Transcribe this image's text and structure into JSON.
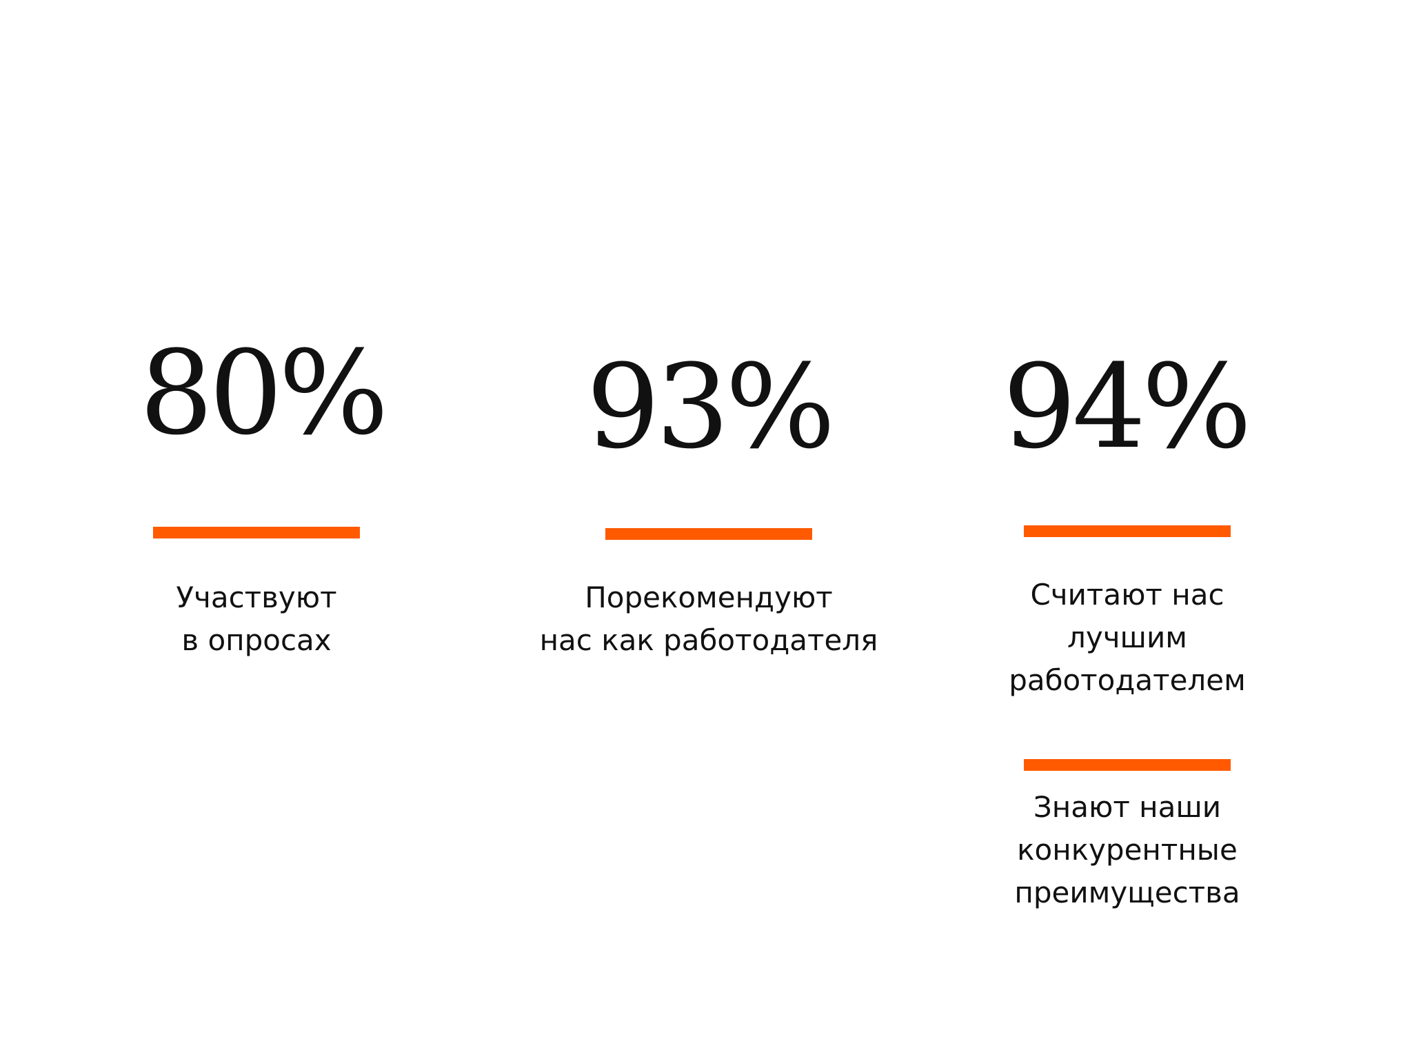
{
  "accent_color": "#ff5a00",
  "stats": [
    {
      "value": "80%",
      "labels": [
        "Участвуют\nв опросах"
      ]
    },
    {
      "value": "93%",
      "labels": [
        "Порекомендуют\nнас как работодателя"
      ]
    },
    {
      "value": "94%",
      "labels": [
        "Считают нас\nлучшим\nработодателем",
        "Знают наши\nконкурентные\nпреимущества"
      ]
    }
  ]
}
